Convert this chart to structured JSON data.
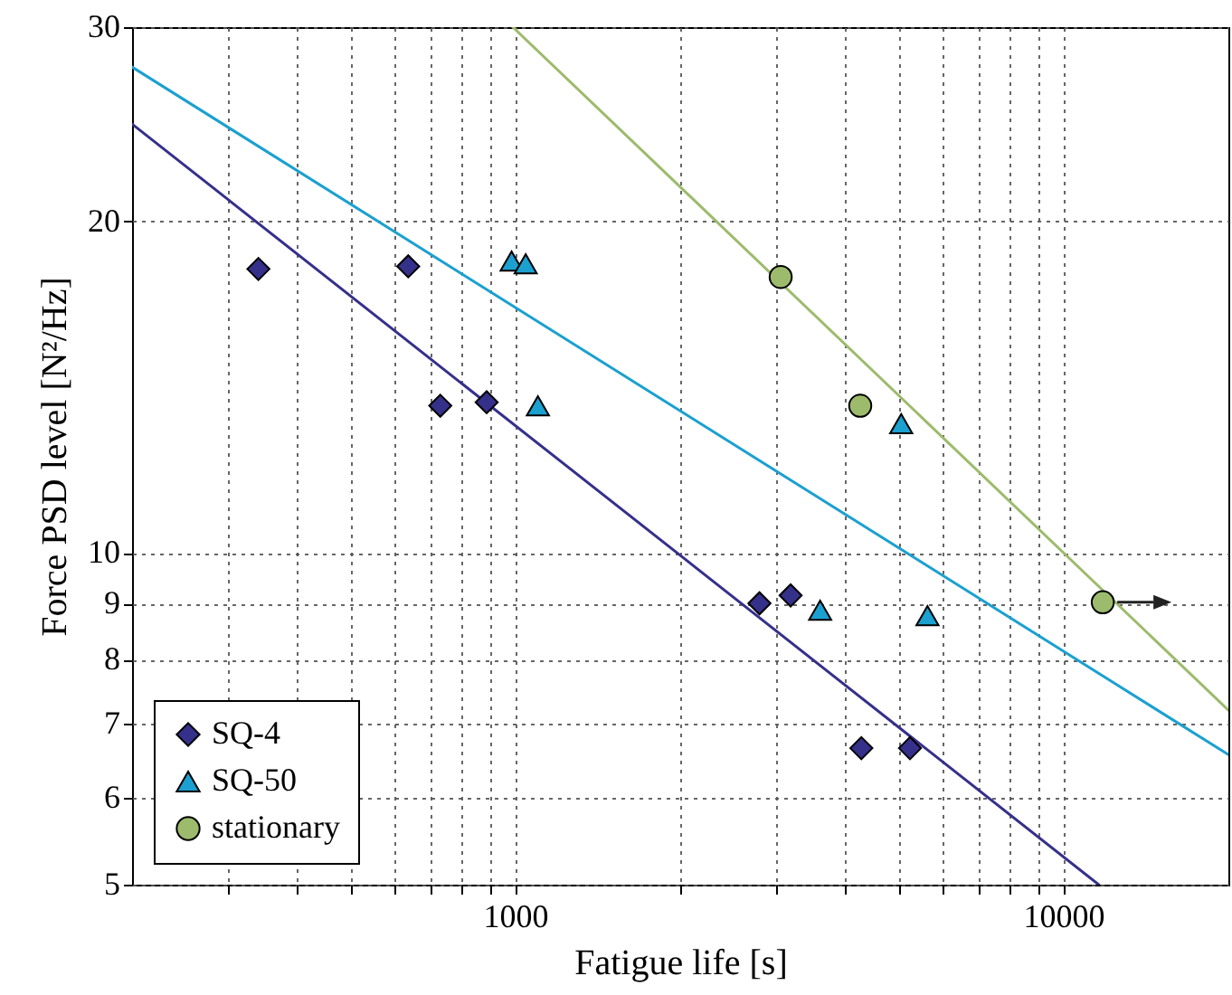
{
  "chart_data": {
    "type": "scatter",
    "xlabel": "Fatigue life [s]",
    "ylabel": "Force PSD level [N²/Hz]",
    "log": "xy",
    "grid": true,
    "legend": "bottom left",
    "xlim": [
      200,
      20000
    ],
    "ylim": [
      5,
      30
    ],
    "xticks": [
      {
        "value": 300,
        "label": null
      },
      {
        "value": 400,
        "label": null
      },
      {
        "value": 500,
        "label": null
      },
      {
        "value": 600,
        "label": null
      },
      {
        "value": 700,
        "label": null
      },
      {
        "value": 800,
        "label": null
      },
      {
        "value": 900,
        "label": null
      },
      1000,
      {
        "value": 2000,
        "label": null
      },
      {
        "value": 3000,
        "label": null
      },
      {
        "value": 4000,
        "label": null
      },
      {
        "value": 5000,
        "label": null
      },
      {
        "value": 6000,
        "label": null
      },
      {
        "value": 7000,
        "label": null
      },
      {
        "value": 8000,
        "label": null
      },
      {
        "value": 9000,
        "label": null
      },
      10000
    ],
    "yticks": [
      5,
      6,
      7,
      8,
      9,
      10,
      20,
      30
    ],
    "series": [
      {
        "name": "SQ-4",
        "marker": "diamond",
        "color": "#35308a",
        "x": [
          340,
          638,
          730,
          887,
          2790,
          3180,
          4280,
          5250
        ],
        "values": [
          18.1,
          18.2,
          13.6,
          13.7,
          9.0,
          9.15,
          6.65,
          6.65
        ]
      },
      {
        "name": "SQ-50",
        "marker": "triangle",
        "color": "#1ba0d0",
        "x": [
          985,
          1045,
          1100,
          3600,
          5060,
          5650
        ],
        "values": [
          18.4,
          18.3,
          13.6,
          8.87,
          13.1,
          8.77
        ]
      },
      {
        "name": "stationary",
        "marker": "circle",
        "color": "#9dbb6c",
        "x": [
          3050,
          4260,
          11800
        ],
        "values": [
          17.8,
          13.6,
          9.02
        ]
      },
      {
        "type": "line",
        "color": "#35308a",
        "x": [
          200,
          11600
        ],
        "values": [
          24.5,
          5
        ]
      },
      {
        "type": "line",
        "color": "#1ba0d0",
        "x": [
          200,
          20000
        ],
        "values": [
          27.6,
          6.56
        ]
      },
      {
        "type": "line",
        "color": "#9dbb6c",
        "x": [
          990,
          20000
        ],
        "values": [
          30,
          7.2
        ]
      }
    ]
  }
}
